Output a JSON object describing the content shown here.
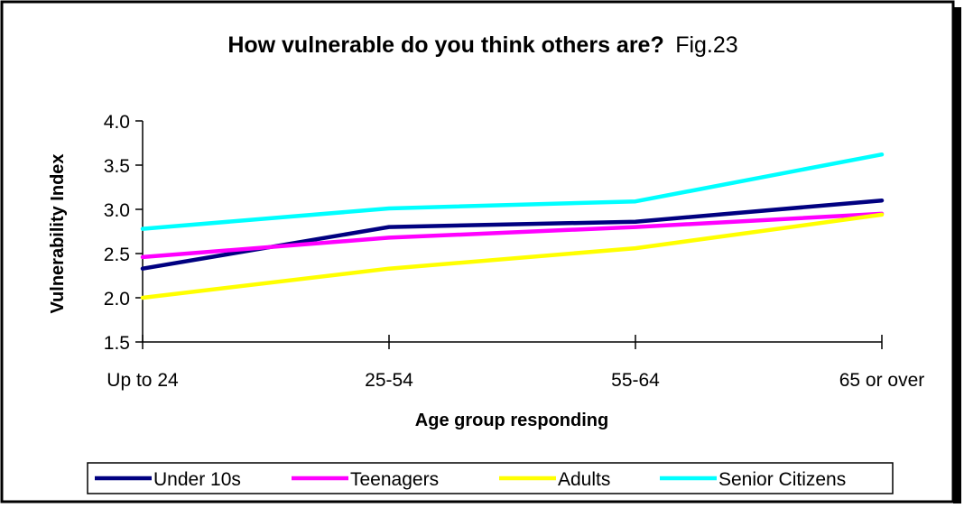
{
  "chart_data": {
    "type": "line",
    "title": "How vulnerable do you think others are?",
    "title_suffix": "Fig.23",
    "xlabel": "Age group responding",
    "ylabel": "Vulnerability Index",
    "categories": [
      "Up to 24",
      "25-54",
      "55-64",
      "65 or over"
    ],
    "ylim": [
      1.5,
      4.0
    ],
    "yticks": [
      1.5,
      2.0,
      2.5,
      3.0,
      3.5,
      4.0
    ],
    "ytick_labels": [
      "1.5",
      "2.0",
      "2.5",
      "3.0",
      "3.5",
      "4.0"
    ],
    "grid": false,
    "legend_position": "bottom",
    "series": [
      {
        "name": "Under 10s",
        "color": "#000080",
        "values": [
          2.33,
          2.8,
          2.86,
          3.1
        ]
      },
      {
        "name": "Teenagers",
        "color": "#ff00ff",
        "values": [
          2.46,
          2.68,
          2.8,
          2.95
        ]
      },
      {
        "name": "Adults",
        "color": "#ffff00",
        "values": [
          2.0,
          2.33,
          2.56,
          2.94
        ]
      },
      {
        "name": "Senior Citizens",
        "color": "#00ffff",
        "values": [
          2.78,
          3.01,
          3.09,
          3.62
        ]
      }
    ]
  }
}
